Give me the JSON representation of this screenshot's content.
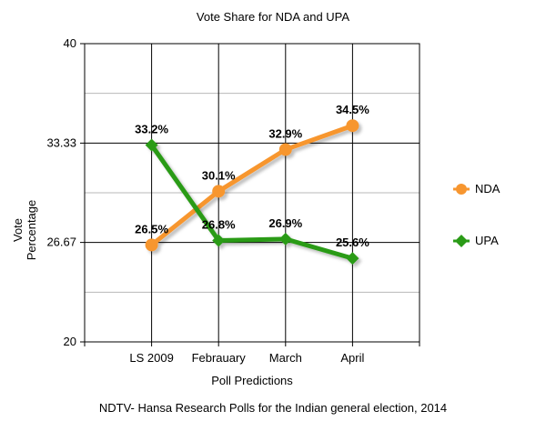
{
  "chart_data": {
    "type": "line",
    "title": "Vote Share for NDA and UPA",
    "xlabel": "Poll Predictions",
    "ylabel": [
      "Vote",
      "Percentage"
    ],
    "caption": "NDTV- Hansa Research Polls for the Indian general election, 2014",
    "categories": [
      "LS 2009",
      "Febrauary",
      "March",
      "April"
    ],
    "ylim": [
      20,
      40
    ],
    "yticks": [
      "20",
      "26.67",
      "33.33",
      "40"
    ],
    "ytick_values": [
      20,
      26.67,
      33.33,
      40
    ],
    "minor_gridlines": [
      23.33,
      30,
      36.67
    ],
    "legend_position": "right",
    "series": [
      {
        "name": "NDA",
        "color": "#f7962f",
        "marker": "circle",
        "values": [
          26.5,
          30.1,
          32.9,
          34.5
        ],
        "labels": [
          "26.5%",
          "30.1%",
          "32.9%",
          "34.5%"
        ]
      },
      {
        "name": "UPA",
        "color": "#2a9b17",
        "marker": "diamond",
        "values": [
          33.2,
          26.8,
          26.9,
          25.6
        ],
        "labels": [
          "33.2%",
          "26.8%",
          "26.9%",
          "25.6%"
        ]
      }
    ]
  }
}
